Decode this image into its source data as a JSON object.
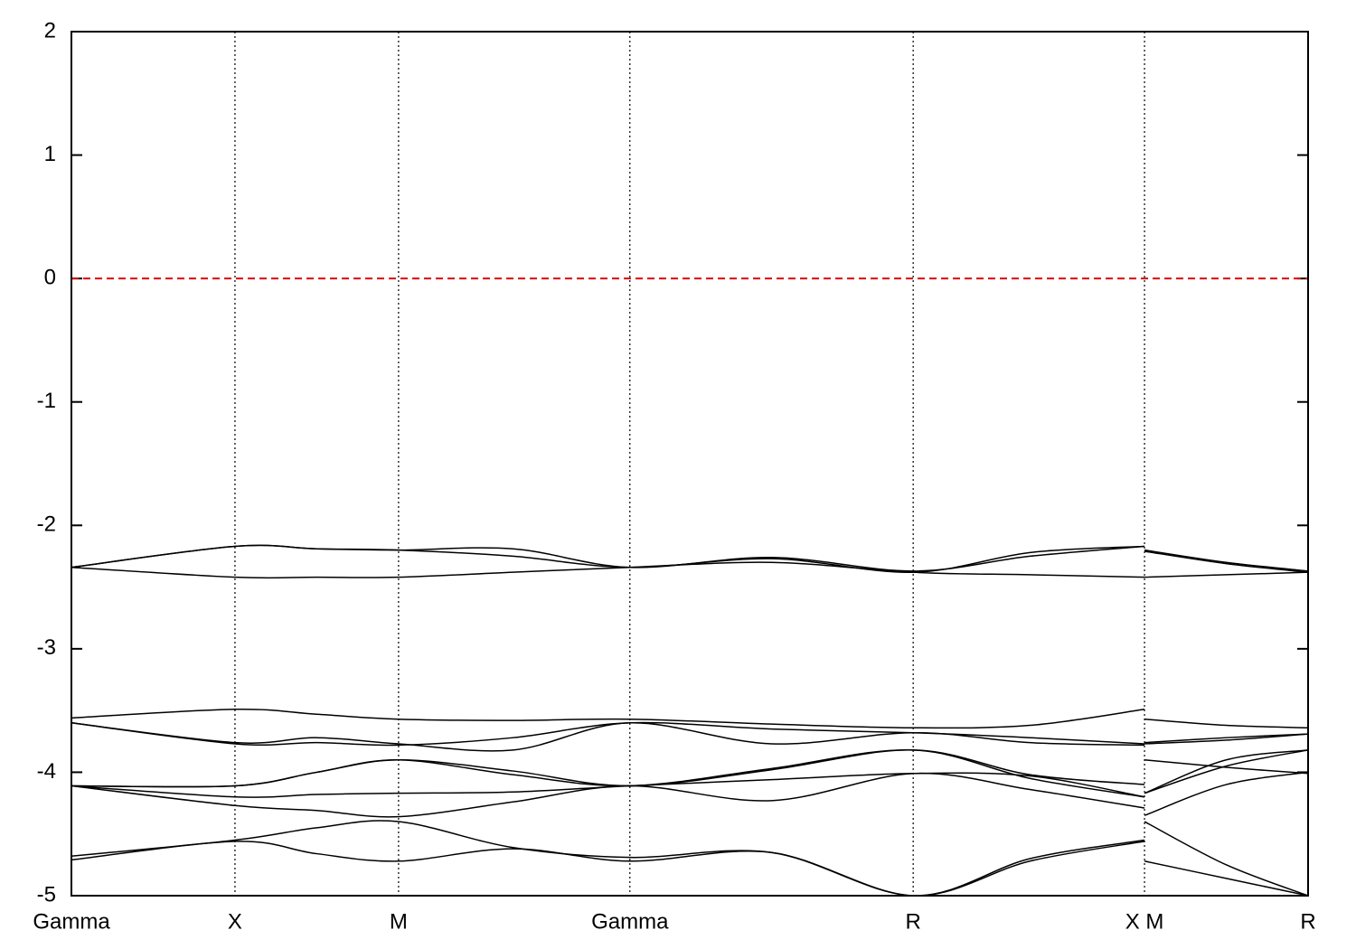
{
  "chart_data": {
    "type": "line",
    "x": [
      0,
      0.5,
      0.75,
      1.0,
      1.35,
      1.7071,
      2.14,
      2.5731,
      2.93,
      3.2802,
      3.2802,
      3.2802,
      3.53,
      3.7802
    ],
    "series": [
      {
        "color": "#000000",
        "values": [
          -2.34,
          -2.17,
          -2.19,
          -2.2,
          -2.19,
          -2.34,
          -2.26,
          -2.37,
          -2.25,
          -2.17,
          null,
          -2.2,
          -2.3,
          -2.37
        ]
      },
      {
        "color": "#000000",
        "values": [
          -2.34,
          -2.42,
          -2.42,
          -2.42,
          -2.38,
          -2.34,
          -2.3,
          -2.38,
          -2.4,
          -2.42,
          null,
          -2.42,
          -2.4,
          -2.38
        ]
      },
      {
        "color": "#000000",
        "values": [
          -2.34,
          -2.17,
          -2.19,
          -2.2,
          -2.25,
          -2.34,
          -2.27,
          -2.38,
          -2.22,
          -2.17,
          null,
          -2.21,
          -2.31,
          -2.38
        ]
      },
      {
        "color": "#000000",
        "values": [
          -3.56,
          -3.49,
          -3.53,
          -3.57,
          -3.58,
          -3.57,
          -3.61,
          -3.64,
          -3.62,
          -3.49,
          null,
          -3.57,
          -3.62,
          -3.64
        ]
      },
      {
        "color": "#000000",
        "values": [
          -3.6,
          -3.77,
          -3.76,
          -3.78,
          -3.72,
          -3.6,
          -3.65,
          -3.68,
          -3.72,
          -3.77,
          null,
          -3.77,
          -3.74,
          -3.69
        ]
      },
      {
        "color": "#000000",
        "values": [
          -3.6,
          -3.76,
          -3.72,
          -3.77,
          -3.82,
          -3.6,
          -3.77,
          -3.68,
          -3.76,
          -3.78,
          null,
          -3.76,
          -3.72,
          -3.69
        ]
      },
      {
        "color": "#000000",
        "values": [
          -4.11,
          -4.11,
          -4.0,
          -3.9,
          -3.99,
          -4.11,
          -3.98,
          -3.82,
          -4.02,
          -4.1,
          null,
          -3.9,
          -3.96,
          -4.01
        ]
      },
      {
        "color": "#000000",
        "values": [
          -4.11,
          -4.2,
          -4.18,
          -4.17,
          -4.16,
          -4.11,
          -4.06,
          -4.01,
          -4.03,
          -4.2,
          null,
          -4.17,
          -3.9,
          -3.82
        ]
      },
      {
        "color": "#000000",
        "values": [
          -4.11,
          -4.27,
          -4.31,
          -4.36,
          -4.24,
          -4.11,
          -4.23,
          -4.01,
          -4.14,
          -4.29,
          null,
          -4.35,
          -4.1,
          -4.0
        ]
      },
      {
        "color": "#000000",
        "values": [
          -4.11,
          -4.11,
          -4.0,
          -3.9,
          -4.02,
          -4.11,
          -3.97,
          -3.82,
          -4.05,
          -4.2,
          null,
          -4.17,
          -3.95,
          -3.82
        ]
      },
      {
        "color": "#000000",
        "values": [
          -4.68,
          -4.55,
          -4.45,
          -4.4,
          -4.61,
          -4.69,
          -4.65,
          -5.0,
          -4.7,
          -4.55,
          null,
          -4.4,
          -4.75,
          -5.0
        ]
      },
      {
        "color": "#000000",
        "values": [
          -4.71,
          -4.56,
          -4.66,
          -4.72,
          -4.62,
          -4.72,
          -4.65,
          -5.0,
          -4.72,
          -4.56,
          null,
          -4.72,
          -4.86,
          -5.0
        ]
      }
    ],
    "xlim": [
      0,
      3.7802
    ],
    "xticks": [
      {
        "value": 0,
        "label": "Gamma"
      },
      {
        "value": 0.5,
        "label": "X"
      },
      {
        "value": 1.0,
        "label": "M"
      },
      {
        "value": 1.7071,
        "label": "Gamma"
      },
      {
        "value": 2.5731,
        "label": "R"
      },
      {
        "value": 3.2802,
        "label": "X M"
      },
      {
        "value": 3.7802,
        "label": "R"
      }
    ],
    "ylim": [
      -5,
      2
    ],
    "yticks": [
      2,
      1,
      0,
      -1,
      -2,
      -3,
      -4,
      -5
    ],
    "grid": "x",
    "reference_line": {
      "y": 0,
      "color": "#dd0000"
    }
  }
}
